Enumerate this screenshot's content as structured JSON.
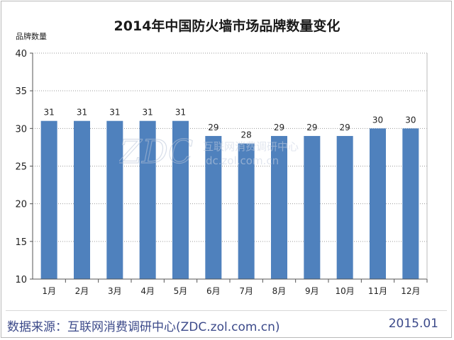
{
  "chart_data": {
    "type": "bar",
    "title": "2014年中国防火墙市场品牌数量变化",
    "ylabel": "品牌数量",
    "categories": [
      "1月",
      "2月",
      "3月",
      "4月",
      "5月",
      "6月",
      "7月",
      "8月",
      "9月",
      "10月",
      "11月",
      "12月"
    ],
    "values": [
      31,
      31,
      31,
      31,
      31,
      29,
      28,
      29,
      29,
      29,
      30,
      30
    ],
    "ylim": [
      10,
      40
    ],
    "yticks": [
      10,
      15,
      20,
      25,
      30,
      35,
      40
    ],
    "grid": true,
    "bar_color": "#4f81bd"
  },
  "footer": {
    "source": "数据来源：互联网消费调研中心(ZDC.zol.com.cn)",
    "date": "2015.01"
  },
  "watermark": {
    "logo": "ZDC",
    "text_cn": "互联网消费调研中心",
    "url": "dc.zol.com.cn"
  }
}
